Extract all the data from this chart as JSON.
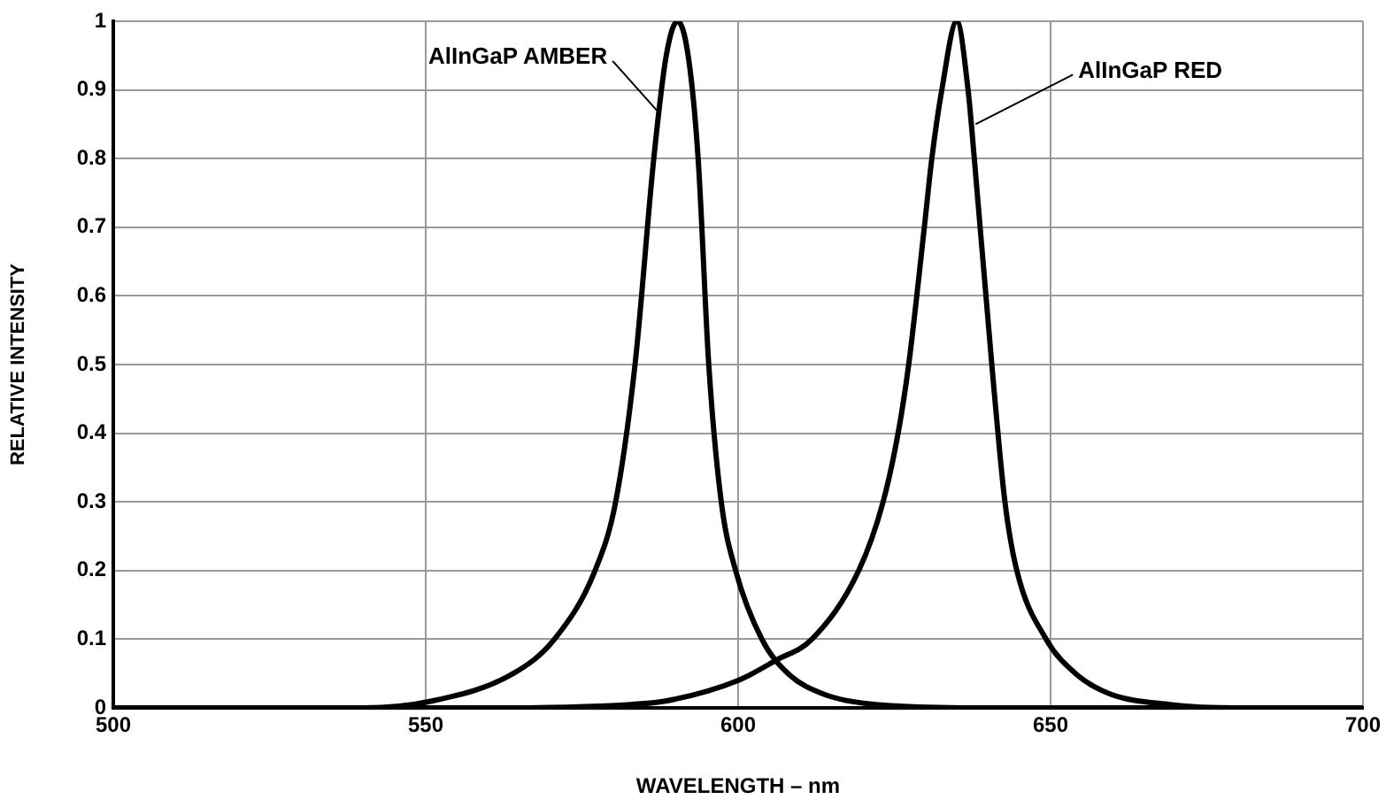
{
  "chart_data": {
    "type": "line",
    "xlabel": "WAVELENGTH – nm",
    "ylabel": "RELATIVE INTENSITY",
    "xlim": [
      500,
      700
    ],
    "xticks": [
      500,
      550,
      600,
      650,
      700
    ],
    "ylim": [
      0,
      1
    ],
    "yticks": [
      0,
      0.1,
      0.2,
      0.3,
      0.4,
      0.5,
      0.6,
      0.7,
      0.8,
      0.9,
      1
    ],
    "grid": true,
    "legend": false,
    "marker": "none",
    "line_style": "solid",
    "series": [
      {
        "color": "#000000",
        "x": [
          500,
          540,
          551,
          564,
          570.6,
          577.1,
          580.4,
          583.5,
          586.5,
          588.5,
          590.3,
          592,
          593.6,
          595.3,
          597.3,
          599.6,
          603.8,
          608,
          613.7,
          622,
          640,
          700
        ],
        "values": [
          0,
          0,
          0.01,
          0.05,
          0.1,
          0.2,
          0.3,
          0.5,
          0.8,
          0.95,
          1,
          0.95,
          0.8,
          0.5,
          0.3,
          0.2,
          0.1,
          0.05,
          0.02,
          0.005,
          0,
          0
        ]
      },
      {
        "color": "#000000",
        "x": [
          500,
          560,
          582.8,
          588.4,
          600,
          606.2,
          611.8,
          619.3,
          623.2,
          625.6,
          627.3,
          629.8,
          631,
          632.6,
          635,
          636.8,
          637.8,
          640.6,
          642.7,
          644.6,
          649.3,
          654,
          659.6,
          669,
          680,
          700
        ],
        "values": [
          0,
          0,
          0.005,
          0.01,
          0.04,
          0.07,
          0.1,
          0.2,
          0.3,
          0.4,
          0.5,
          0.7,
          0.8,
          0.9,
          1,
          0.9,
          0.8,
          0.5,
          0.3,
          0.2,
          0.1,
          0.05,
          0.02,
          0.005,
          0,
          0
        ]
      }
    ],
    "annotations": [
      {
        "text": "AlInGaP AMBER",
        "x": 587,
        "y": 0.87
      },
      {
        "text": "AlInGaP RED",
        "x": 638,
        "y": 0.85
      }
    ]
  }
}
